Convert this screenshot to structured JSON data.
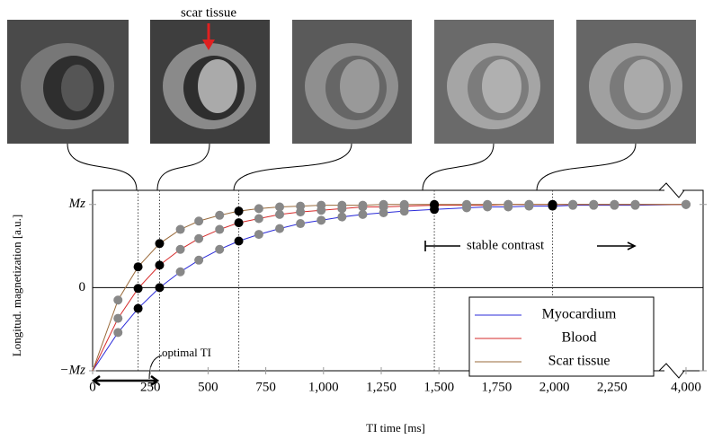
{
  "chart_data": {
    "type": "line",
    "x_label": "TI time [ms]",
    "y_label": "Longitud. magnetization [a.u.]",
    "annotations": {
      "scar": "scar tissue",
      "optimal": "optimal TI",
      "stable": "stable contrast"
    },
    "x": [
      0,
      110,
      197,
      290,
      380,
      460,
      550,
      633,
      720,
      810,
      900,
      990,
      1080,
      1170,
      1260,
      1350,
      1480,
      1620,
      1710,
      1800,
      1890,
      1992,
      2080,
      2170,
      2260,
      2350,
      4000
    ],
    "marker_colors": [
      null,
      "#888888",
      "#000000",
      "#000000",
      "#888888",
      "#888888",
      "#888888",
      "#000000",
      "#888888",
      "#888888",
      "#888888",
      "#888888",
      "#888888",
      "#888888",
      "#888888",
      "#888888",
      "#000000",
      "#888888",
      "#888888",
      "#888888",
      "#888888",
      "#000000",
      "#888888",
      "#888888",
      "#888888",
      "#888888",
      "#888888"
    ],
    "series": [
      {
        "name": "Myocardium",
        "color": "#2b2bd9",
        "values": [
          -1,
          -0.54,
          -0.25,
          0,
          0.19,
          0.33,
          0.46,
          0.56,
          0.64,
          0.71,
          0.77,
          0.81,
          0.85,
          0.88,
          0.9,
          0.92,
          0.94,
          0.96,
          0.97,
          0.97,
          0.98,
          0.98,
          0.99,
          0.99,
          0.99,
          0.99,
          1
        ]
      },
      {
        "name": "Blood",
        "color": "#d62a2a",
        "values": [
          -1,
          -0.37,
          -0.01,
          0.27,
          0.46,
          0.59,
          0.7,
          0.78,
          0.83,
          0.88,
          0.91,
          0.93,
          0.95,
          0.97,
          0.97,
          0.98,
          0.99,
          0.99,
          0.99,
          1,
          1,
          1,
          1,
          1,
          1,
          1,
          1
        ]
      },
      {
        "name": "Scar tissue",
        "color": "#9a6a3a",
        "values": [
          -1,
          -0.15,
          0.25,
          0.53,
          0.7,
          0.8,
          0.87,
          0.92,
          0.95,
          0.97,
          0.98,
          0.99,
          0.99,
          0.99,
          1,
          1,
          1,
          1,
          1,
          1,
          1,
          1,
          1,
          1,
          1,
          1,
          1
        ]
      }
    ],
    "xlim": [
      0,
      4075
    ],
    "x_break": [
      2500,
      3930
    ],
    "xticks": [
      0,
      250,
      500,
      750,
      {
        "value": 1000,
        "label": "1,000"
      },
      {
        "value": 1250,
        "label": "1,250"
      },
      {
        "value": 1500,
        "label": "1,500"
      },
      {
        "value": 1750,
        "label": "1,750"
      },
      {
        "value": 2000,
        "label": "2,000"
      },
      {
        "value": 2250,
        "label": "2,250"
      },
      {
        "value": 4000,
        "label": "4,000"
      }
    ],
    "ylim": [
      -1,
      1.17
    ],
    "yticks": [
      {
        "value": -1,
        "label": "−Mz"
      },
      0,
      {
        "value": 1,
        "label": "Mz"
      }
    ],
    "legend": "lower right"
  }
}
